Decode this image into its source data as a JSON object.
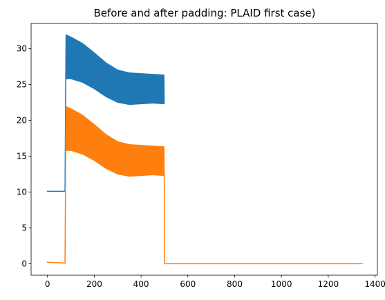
{
  "chart_data": {
    "type": "line",
    "title": "Before and after padding: PLAID first case)",
    "xlabel": "",
    "ylabel": "",
    "xlim": [
      -70,
      1410
    ],
    "ylim": [
      -1.6,
      33.5
    ],
    "xticks": [
      0,
      200,
      400,
      600,
      800,
      1000,
      1200,
      1400
    ],
    "xtick_labels": [
      "0",
      "200",
      "400",
      "600",
      "800",
      "1000",
      "1200",
      "1400"
    ],
    "yticks": [
      0,
      5,
      10,
      15,
      20,
      25,
      30
    ],
    "ytick_labels": [
      "0",
      "5",
      "10",
      "15",
      "20",
      "25",
      "30"
    ],
    "grid": false,
    "legend": "none",
    "series": [
      {
        "color": "#1f77b4",
        "segments": [
          {
            "x": [
              0,
              75
            ],
            "y": [
              10.1,
              10.1
            ]
          },
          {
            "x": [
              75,
              78
            ],
            "y": [
              10.1,
              25.8
            ]
          }
        ],
        "envelope": {
          "x": [
            78,
            80,
            100,
            150,
            200,
            250,
            300,
            350,
            400,
            450,
            499
          ],
          "lower": [
            25.8,
            25.8,
            25.8,
            25.3,
            24.4,
            23.3,
            22.5,
            22.2,
            22.3,
            22.4,
            22.3
          ],
          "upper": [
            31.8,
            31.9,
            31.6,
            30.7,
            29.4,
            28.0,
            27.0,
            26.6,
            26.5,
            26.4,
            26.3
          ]
        }
      },
      {
        "color": "#ff7f0e",
        "segments": [
          {
            "x": [
              0,
              75
            ],
            "y": [
              0.2,
              0.1
            ]
          },
          {
            "x": [
              75,
              78
            ],
            "y": [
              0.1,
              15.8
            ]
          },
          {
            "x": [
              499,
              501
            ],
            "y": [
              12.3,
              0.0
            ]
          },
          {
            "x": [
              501,
              1345
            ],
            "y": [
              0.0,
              0.0
            ]
          }
        ],
        "envelope": {
          "x": [
            78,
            80,
            100,
            150,
            200,
            250,
            300,
            350,
            400,
            450,
            499
          ],
          "lower": [
            15.8,
            15.8,
            15.8,
            15.3,
            14.4,
            13.3,
            12.5,
            12.2,
            12.3,
            12.4,
            12.3
          ],
          "upper": [
            21.8,
            21.9,
            21.6,
            20.7,
            19.4,
            18.0,
            17.0,
            16.6,
            16.5,
            16.4,
            16.3
          ]
        }
      }
    ]
  }
}
